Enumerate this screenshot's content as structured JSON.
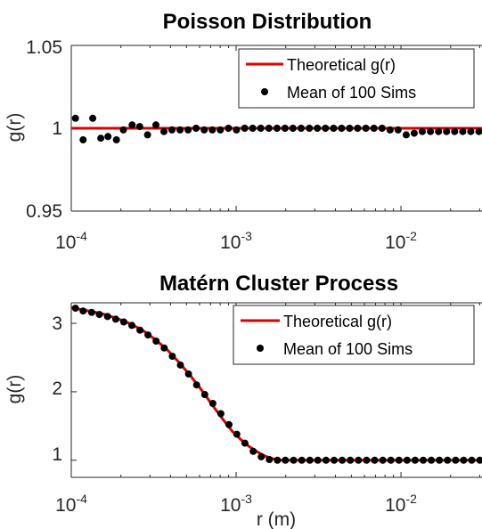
{
  "chart_data": [
    {
      "type": "scatter",
      "title": "Poisson Distribution",
      "xlabel": "",
      "ylabel": "g(r)",
      "x_scale": "log",
      "xlim": [
        0.0001,
        0.031
      ],
      "ylim": [
        0.95,
        1.05
      ],
      "y_ticks": [
        "0.95",
        "1",
        "1.05"
      ],
      "x_ticks": [
        {
          "base": "10",
          "exp": "-4"
        },
        {
          "base": "10",
          "exp": "-3"
        },
        {
          "base": "10",
          "exp": "-2"
        }
      ],
      "legend": {
        "placement": "top-right",
        "entries": [
          "Theoretical g(r)",
          "Mean of 100 Sims"
        ]
      },
      "series": [
        {
          "name": "Theoretical g(r)",
          "kind": "line",
          "color": "#e00000",
          "x": [
            0.0001,
            0.031
          ],
          "y": [
            1.0,
            1.0
          ]
        },
        {
          "name": "Mean of 100 Sims",
          "kind": "points",
          "color": "#000000",
          "x": [
            0.000106,
            0.000118,
            0.000135,
            0.000151,
            0.000167,
            0.000188,
            0.000207,
            0.000234,
            0.00026,
            0.00029,
            0.000326,
            0.000365,
            0.000408,
            0.000457,
            0.000511,
            0.000572,
            0.00064,
            0.000717,
            0.000802,
            0.000898,
            0.001005,
            0.001126,
            0.00126,
            0.00141,
            0.00158,
            0.00177,
            0.00198,
            0.00221,
            0.00248,
            0.00278,
            0.00311,
            0.00348,
            0.0039,
            0.00436,
            0.00488,
            0.00546,
            0.00612,
            0.00685,
            0.00767,
            0.00858,
            0.0096,
            0.01075,
            0.01203,
            0.01347,
            0.01508,
            0.01688,
            0.0189,
            0.02115,
            0.02368,
            0.0265,
            0.02967
          ],
          "y": [
            1.006,
            0.993,
            1.006,
            0.994,
            0.995,
            0.993,
            0.999,
            1.002,
            1.001,
            0.996,
            1.002,
            0.998,
            0.999,
            0.999,
            0.999,
            1.0,
            0.999,
            0.999,
            0.999,
            1.0,
            0.999,
            1.0,
            1.0,
            1.0,
            1.0,
            1.0,
            1.0,
            1.0,
            1.0,
            1.0,
            1.0,
            1.0,
            1.0,
            1.0,
            1.0,
            1.0,
            1.0,
            1.0,
            1.0,
            0.999,
            0.999,
            0.996,
            0.997,
            0.998,
            0.998,
            0.998,
            0.998,
            0.998,
            0.998,
            0.998,
            0.998
          ]
        }
      ]
    },
    {
      "type": "scatter",
      "title": "Matérn Cluster Process",
      "xlabel": "r (m)",
      "ylabel": "g(r)",
      "x_scale": "log",
      "xlim": [
        0.0001,
        0.031
      ],
      "ylim": [
        0.75,
        3.3
      ],
      "y_ticks": [
        "1",
        "2",
        "3"
      ],
      "x_ticks": [
        {
          "base": "10",
          "exp": "-4"
        },
        {
          "base": "10",
          "exp": "-3"
        },
        {
          "base": "10",
          "exp": "-2"
        }
      ],
      "legend": {
        "placement": "top-right",
        "entries": [
          "Theoretical g(r)",
          "Mean of 100 Sims"
        ]
      },
      "series": [
        {
          "name": "Theoretical g(r)",
          "kind": "line",
          "color": "#e00000",
          "x": [
            0.0001,
            0.000115,
            0.000135,
            0.00016,
            0.00019,
            0.000225,
            0.00027,
            0.00032,
            0.00038,
            0.00045,
            0.00053,
            0.00062,
            0.00072,
            0.00083,
            0.00095,
            0.00107,
            0.0012,
            0.00135,
            0.0015,
            0.00167,
            0.00185,
            0.00205,
            0.0025,
            0.005,
            0.01,
            0.031
          ],
          "y": [
            3.23,
            3.2,
            3.17,
            3.13,
            3.07,
            3.0,
            2.9,
            2.77,
            2.62,
            2.43,
            2.23,
            2.02,
            1.8,
            1.6,
            1.42,
            1.3,
            1.2,
            1.12,
            1.06,
            1.02,
            1.0,
            1.0,
            1.0,
            1.0,
            1.0,
            1.0
          ]
        },
        {
          "name": "Mean of 100 Sims",
          "kind": "points",
          "color": "#000000",
          "x": [
            0.000106,
            0.000118,
            0.000133,
            0.000148,
            0.000166,
            0.000186,
            0.000208,
            0.000233,
            0.000261,
            0.000292,
            0.000327,
            0.000366,
            0.00041,
            0.000459,
            0.000514,
            0.000576,
            0.000645,
            0.000722,
            0.000808,
            0.000905,
            0.00101,
            0.00113,
            0.00127,
            0.00142,
            0.00159,
            0.00178,
            0.00199,
            0.00223,
            0.0025,
            0.0028,
            0.00313,
            0.00351,
            0.00393,
            0.0044,
            0.00493,
            0.00552,
            0.00618,
            0.00692,
            0.00775,
            0.00868,
            0.00972,
            0.01088,
            0.01218,
            0.01364,
            0.01527,
            0.0171,
            0.01915,
            0.02144,
            0.024,
            0.02688,
            0.0301
          ],
          "y": [
            3.22,
            3.18,
            3.16,
            3.13,
            3.1,
            3.06,
            3.02,
            2.97,
            2.9,
            2.83,
            2.74,
            2.64,
            2.52,
            2.39,
            2.26,
            2.1,
            1.96,
            1.83,
            1.68,
            1.52,
            1.38,
            1.25,
            1.13,
            1.05,
            1.01,
            1.0,
            1.0,
            1.0,
            1.0,
            1.0,
            1.0,
            1.0,
            1.0,
            1.0,
            1.0,
            1.0,
            1.0,
            1.0,
            1.0,
            1.0,
            1.0,
            1.0,
            1.0,
            1.0,
            1.0,
            1.0,
            1.0,
            1.0,
            1.0,
            1.0,
            1.0
          ]
        }
      ]
    }
  ]
}
